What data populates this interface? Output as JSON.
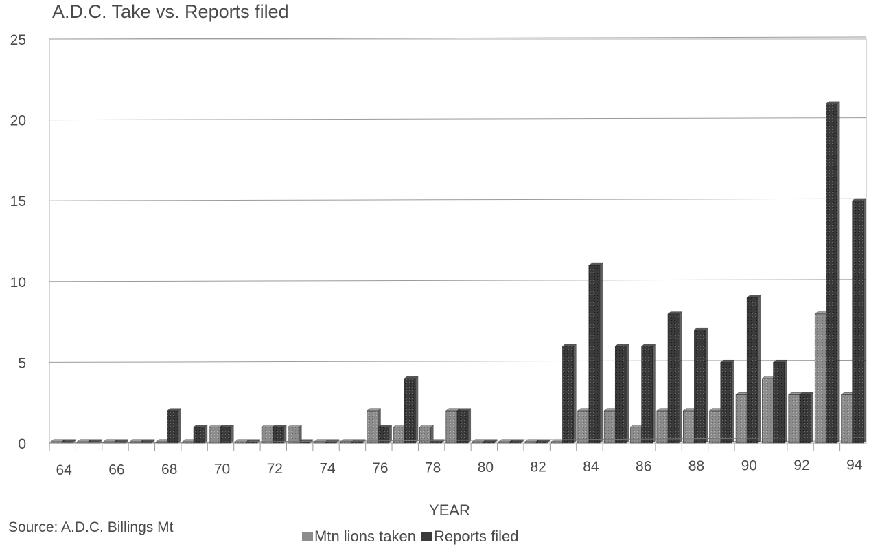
{
  "title": "A.D.C. Take vs. Reports filed",
  "source_note": "Source: A.D.C. Billings Mt",
  "colors": {
    "taken": "#8c8c8c",
    "reports": "#3a3a3a",
    "grid": "#9a9a9a"
  },
  "chart_data": {
    "type": "bar",
    "title": "A.D.C. Take vs. Reports filed",
    "xlabel": "YEAR",
    "ylabel": "",
    "ylim": [
      0,
      25
    ],
    "yticks": [
      0,
      5,
      10,
      15,
      20,
      25
    ],
    "categories": [
      "64",
      "65",
      "66",
      "67",
      "68",
      "69",
      "70",
      "71",
      "72",
      "73",
      "74",
      "75",
      "76",
      "77",
      "78",
      "79",
      "80",
      "81",
      "82",
      "83",
      "84",
      "85",
      "86",
      "87",
      "88",
      "89",
      "90",
      "91",
      "92",
      "93",
      "94"
    ],
    "xtick_labels": [
      "64",
      "66",
      "68",
      "70",
      "72",
      "74",
      "76",
      "78",
      "80",
      "82",
      "84",
      "86",
      "88",
      "90",
      "92",
      "94"
    ],
    "series": [
      {
        "name": "Mtn lions taken",
        "values": [
          0,
          0,
          0,
          0,
          0,
          0,
          1,
          0,
          1,
          1,
          0,
          0,
          2,
          1,
          1,
          2,
          0,
          0,
          0,
          0,
          2,
          2,
          1,
          2,
          2,
          2,
          3,
          4,
          3,
          8,
          3
        ]
      },
      {
        "name": "Reports filed",
        "values": [
          0,
          0,
          0,
          0,
          2,
          1,
          1,
          0,
          1,
          0,
          0,
          0,
          1,
          4,
          0,
          2,
          0,
          0,
          0,
          6,
          11,
          6,
          6,
          8,
          7,
          5,
          9,
          5,
          3,
          21,
          15
        ]
      }
    ],
    "grid": true,
    "legend_position": "bottom"
  }
}
